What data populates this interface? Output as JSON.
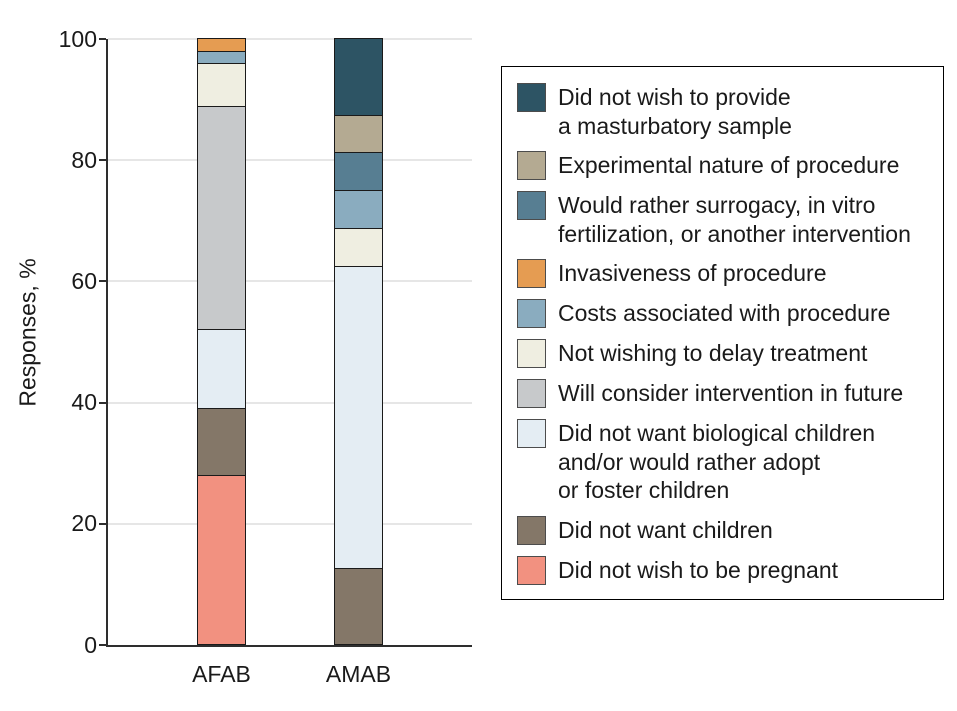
{
  "chart_data": {
    "type": "stacked-bar",
    "ylabel": "Responses, %",
    "ylim": [
      0,
      100
    ],
    "y_ticks": [
      0,
      20,
      40,
      60,
      80,
      100
    ],
    "grid": "horizontal",
    "legend_position": "right",
    "categories": [
      "AFAB",
      "AMAB"
    ],
    "series": [
      {
        "name": "Did not wish to provide a masturbatory sample",
        "legend_lines": [
          "Did not wish to provide",
          "a masturbatory sample"
        ],
        "color": "#2d5464",
        "values": [
          0,
          12.5
        ]
      },
      {
        "name": "Experimental nature of procedure",
        "legend_lines": [
          "Experimental nature of procedure"
        ],
        "color": "#b4aa92",
        "values": [
          0,
          6.25
        ]
      },
      {
        "name": "Would rather surrogacy, in vitro fertilization, or another intervention",
        "legend_lines": [
          "Would rather surrogacy, in vitro",
          "fertilization, or another intervention"
        ],
        "color": "#577e92",
        "values": [
          0,
          6.25
        ]
      },
      {
        "name": "Invasiveness of procedure",
        "legend_lines": [
          "Invasiveness of procedure"
        ],
        "color": "#e59c52",
        "values": [
          2,
          0
        ]
      },
      {
        "name": "Costs associated with procedure",
        "legend_lines": [
          "Costs associated with procedure"
        ],
        "color": "#8aacbf",
        "values": [
          2,
          6.25
        ]
      },
      {
        "name": "Not wishing to delay treatment",
        "legend_lines": [
          "Not wishing to delay treatment"
        ],
        "color": "#efeee1",
        "values": [
          7,
          6.25
        ]
      },
      {
        "name": "Will consider intervention in future",
        "legend_lines": [
          "Will consider intervention in future"
        ],
        "color": "#c7c9cb",
        "values": [
          37,
          0
        ]
      },
      {
        "name": "Did not want biological children and/or would rather adopt or foster children",
        "legend_lines": [
          "Did not want biological children",
          "and/or would rather adopt",
          "or foster children"
        ],
        "color": "#e4edf3",
        "values": [
          13,
          50
        ]
      },
      {
        "name": "Did not want children",
        "legend_lines": [
          "Did not want children"
        ],
        "color": "#847768",
        "values": [
          11,
          12.5
        ]
      },
      {
        "name": "Did not wish to be pregnant",
        "legend_lines": [
          "Did not wish to be pregnant"
        ],
        "color": "#f29180",
        "values": [
          28,
          0
        ]
      }
    ]
  }
}
